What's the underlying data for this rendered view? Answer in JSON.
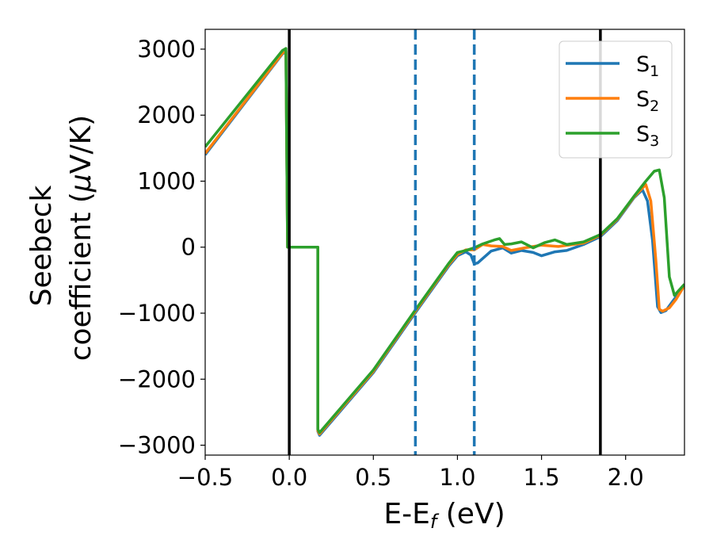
{
  "chart_data": {
    "type": "line",
    "title": "",
    "xlabel": "E-E",
    "xlabel_sub": "f",
    "xlabel_unit": " (eV)",
    "ylabel_line1": "Seebeck",
    "ylabel_line2": "coefficient  (",
    "ylabel_mu": "μ",
    "ylabel_unit": "V/K)",
    "xlim": [
      -0.5,
      2.35
    ],
    "ylim": [
      -3150,
      3300
    ],
    "xticks": [
      -0.5,
      0.0,
      0.5,
      1.0,
      1.5,
      2.0
    ],
    "xtick_labels": [
      "−0.5",
      "0.0",
      "0.5",
      "1.0",
      "1.5",
      "2.0"
    ],
    "yticks": [
      -3000,
      -2000,
      -1000,
      0,
      1000,
      2000,
      3000
    ],
    "ytick_labels": [
      "−3000",
      "−2000",
      "−1000",
      "0",
      "1000",
      "2000",
      "3000"
    ],
    "grid": false,
    "legend_position": "top-right",
    "vlines": [
      {
        "x": 0.0,
        "style": "solid",
        "color": "#000000"
      },
      {
        "x": 1.85,
        "style": "solid",
        "color": "#000000"
      },
      {
        "x": 0.75,
        "style": "dashed",
        "color": "#1f77b4"
      },
      {
        "x": 1.1,
        "style": "dashed",
        "color": "#1f77b4"
      }
    ],
    "series": [
      {
        "name": "S",
        "sub": "1",
        "color": "#1f77b4",
        "points": [
          [
            -0.5,
            1400
          ],
          [
            -0.04,
            2930
          ],
          [
            -0.02,
            2960
          ],
          [
            -0.01,
            0
          ],
          [
            0.17,
            0
          ],
          [
            0.17,
            -2790
          ],
          [
            0.18,
            -2850
          ],
          [
            0.5,
            -1900
          ],
          [
            0.75,
            -990
          ],
          [
            0.95,
            -280
          ],
          [
            1.0,
            -130
          ],
          [
            1.05,
            -70
          ],
          [
            1.08,
            -120
          ],
          [
            1.1,
            -250
          ],
          [
            1.12,
            -240
          ],
          [
            1.2,
            -60
          ],
          [
            1.27,
            -10
          ],
          [
            1.32,
            -90
          ],
          [
            1.38,
            -50
          ],
          [
            1.45,
            -80
          ],
          [
            1.5,
            -130
          ],
          [
            1.58,
            -70
          ],
          [
            1.65,
            -50
          ],
          [
            1.75,
            40
          ],
          [
            1.85,
            160
          ],
          [
            1.95,
            400
          ],
          [
            2.05,
            750
          ],
          [
            2.1,
            870
          ],
          [
            2.13,
            700
          ],
          [
            2.16,
            100
          ],
          [
            2.19,
            -900
          ],
          [
            2.21,
            -990
          ],
          [
            2.24,
            -960
          ],
          [
            2.28,
            -820
          ],
          [
            2.35,
            -580
          ]
        ]
      },
      {
        "name": "S",
        "sub": "2",
        "color": "#ff7f0e",
        "points": [
          [
            -0.5,
            1420
          ],
          [
            -0.04,
            2940
          ],
          [
            -0.02,
            2975
          ],
          [
            -0.01,
            0
          ],
          [
            0.17,
            0
          ],
          [
            0.17,
            -2780
          ],
          [
            0.18,
            -2830
          ],
          [
            0.5,
            -1880
          ],
          [
            0.75,
            -970
          ],
          [
            0.95,
            -260
          ],
          [
            1.0,
            -110
          ],
          [
            1.05,
            -40
          ],
          [
            1.1,
            -40
          ],
          [
            1.15,
            40
          ],
          [
            1.2,
            20
          ],
          [
            1.27,
            10
          ],
          [
            1.32,
            -50
          ],
          [
            1.4,
            -10
          ],
          [
            1.5,
            30
          ],
          [
            1.6,
            10
          ],
          [
            1.75,
            60
          ],
          [
            1.85,
            180
          ],
          [
            1.95,
            420
          ],
          [
            2.05,
            760
          ],
          [
            2.12,
            950
          ],
          [
            2.15,
            700
          ],
          [
            2.18,
            -200
          ],
          [
            2.2,
            -940
          ],
          [
            2.22,
            -970
          ],
          [
            2.26,
            -920
          ],
          [
            2.3,
            -790
          ],
          [
            2.35,
            -580
          ]
        ]
      },
      {
        "name": "S",
        "sub": "3",
        "color": "#2ca02c",
        "points": [
          [
            -0.5,
            1520
          ],
          [
            -0.04,
            2980
          ],
          [
            -0.02,
            3010
          ],
          [
            -0.01,
            0
          ],
          [
            0.17,
            0
          ],
          [
            0.17,
            -2760
          ],
          [
            0.18,
            -2810
          ],
          [
            0.5,
            -1860
          ],
          [
            0.75,
            -950
          ],
          [
            0.95,
            -240
          ],
          [
            1.0,
            -80
          ],
          [
            1.05,
            -50
          ],
          [
            1.1,
            -10
          ],
          [
            1.15,
            50
          ],
          [
            1.22,
            110
          ],
          [
            1.25,
            130
          ],
          [
            1.28,
            40
          ],
          [
            1.32,
            50
          ],
          [
            1.38,
            80
          ],
          [
            1.45,
            -10
          ],
          [
            1.52,
            70
          ],
          [
            1.58,
            110
          ],
          [
            1.65,
            40
          ],
          [
            1.75,
            80
          ],
          [
            1.85,
            190
          ],
          [
            1.95,
            430
          ],
          [
            2.05,
            770
          ],
          [
            2.12,
            1000
          ],
          [
            2.17,
            1150
          ],
          [
            2.2,
            1170
          ],
          [
            2.23,
            750
          ],
          [
            2.26,
            -450
          ],
          [
            2.29,
            -730
          ],
          [
            2.35,
            -560
          ]
        ]
      }
    ]
  }
}
